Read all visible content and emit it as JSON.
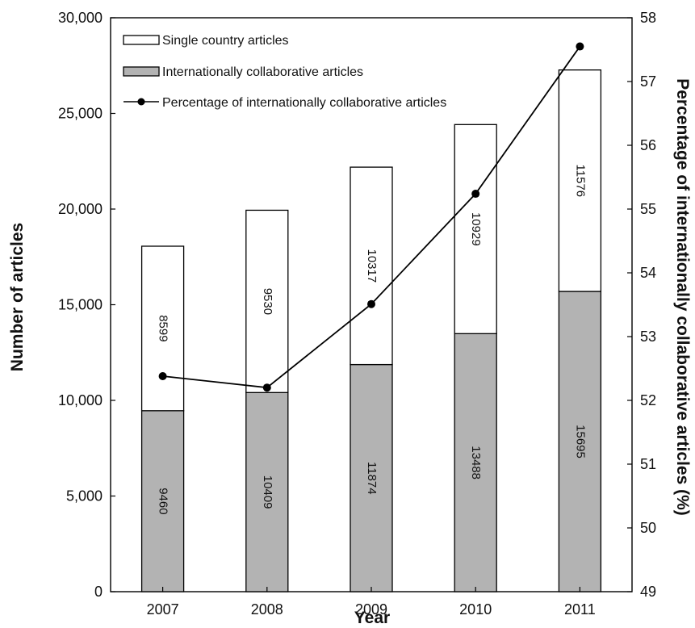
{
  "chart_data": {
    "type": "bar",
    "stacked": true,
    "categories": [
      "2007",
      "2008",
      "2009",
      "2010",
      "2011"
    ],
    "series": [
      {
        "name": "Internationally collaborative articles",
        "kind": "bar",
        "axis": "left",
        "color": "#b3b3b3",
        "values": [
          9460,
          10409,
          11874,
          13488,
          15695
        ]
      },
      {
        "name": "Single country articles",
        "kind": "bar",
        "axis": "left",
        "color": "#ffffff",
        "values": [
          8599,
          9530,
          10317,
          10929,
          11576
        ]
      },
      {
        "name": "Percentage of internationally collaborative articles",
        "kind": "line",
        "axis": "right",
        "color": "#000000",
        "values": [
          52.38,
          52.2,
          53.51,
          55.24,
          57.55
        ]
      }
    ],
    "xlabel": "Year",
    "ylabel": "Number of articles",
    "y2label": "Percentage of internationally collaborative articles (%)",
    "ylim": [
      0,
      30000
    ],
    "y2lim": [
      49,
      58
    ],
    "yticks": [
      "0",
      "5,000",
      "10,000",
      "15,000",
      "20,000",
      "25,000",
      "30,000"
    ],
    "y2ticks": [
      "49",
      "50",
      "51",
      "52",
      "53",
      "54",
      "55",
      "56",
      "57",
      "58"
    ],
    "legend": {
      "position": "top-left",
      "entries": [
        "Single country articles",
        "Internationally collaborative articles",
        "Percentage of internationally collaborative articles"
      ]
    },
    "grid": false
  }
}
